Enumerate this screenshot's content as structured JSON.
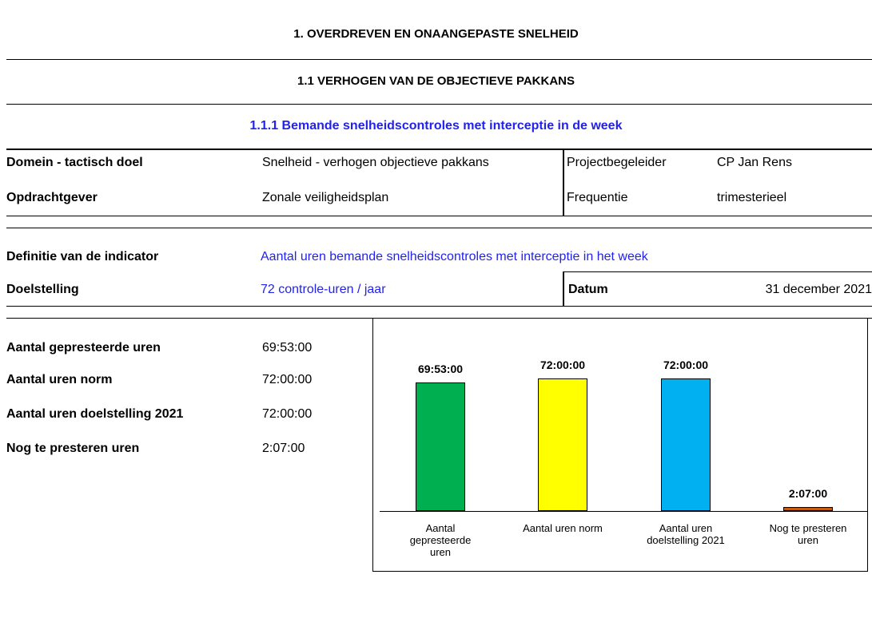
{
  "headings": [
    "1. OVERDREVEN EN ONAANGEPASTE SNELHEID",
    "1.1 VERHOGEN VAN DE OBJECTIEVE PAKKANS",
    "1.1.1 Bemande snelheidscontroles met interceptie in de week"
  ],
  "info": [
    [
      "Domein - tactisch doel",
      "Snelheid - verhogen objectieve pakkans",
      "Projectbegeleider",
      "CP Jan Rens"
    ],
    [
      "Opdrachtgever",
      "Zonale veiligheidsplan",
      "Frequentie",
      "trimesterieel"
    ]
  ],
  "definition": {
    "label": "Definitie van de indicator",
    "value": "Aantal uren bemande snelheidscontroles met interceptie in het week"
  },
  "goal": {
    "label": "Doelstelling",
    "value": "72 controle-uren / jaar",
    "date_label": "Datum",
    "date": "31 december 2021"
  },
  "stats": [
    [
      "Aantal gepresteerde uren",
      "69:53:00"
    ],
    [
      "Aantal uren norm",
      "72:00:00"
    ],
    [
      "Aantal uren doelstelling 2021",
      "72:00:00"
    ],
    [
      "Nog te presteren uren",
      "2:07:00"
    ]
  ],
  "chart_data": {
    "type": "bar",
    "categories": [
      "Aantal gepresteerde uren",
      "Aantal uren norm",
      "Aantal uren doelstelling 2021",
      "Nog te presteren uren"
    ],
    "values": [
      69.883333,
      72,
      72,
      2.116667
    ],
    "value_labels": [
      "69:53:00",
      "72:00:00",
      "72:00:00",
      "2:07:00"
    ],
    "colors": [
      "#00b050",
      "#ffff00",
      "#00b0f0",
      "#c55a11"
    ]
  }
}
